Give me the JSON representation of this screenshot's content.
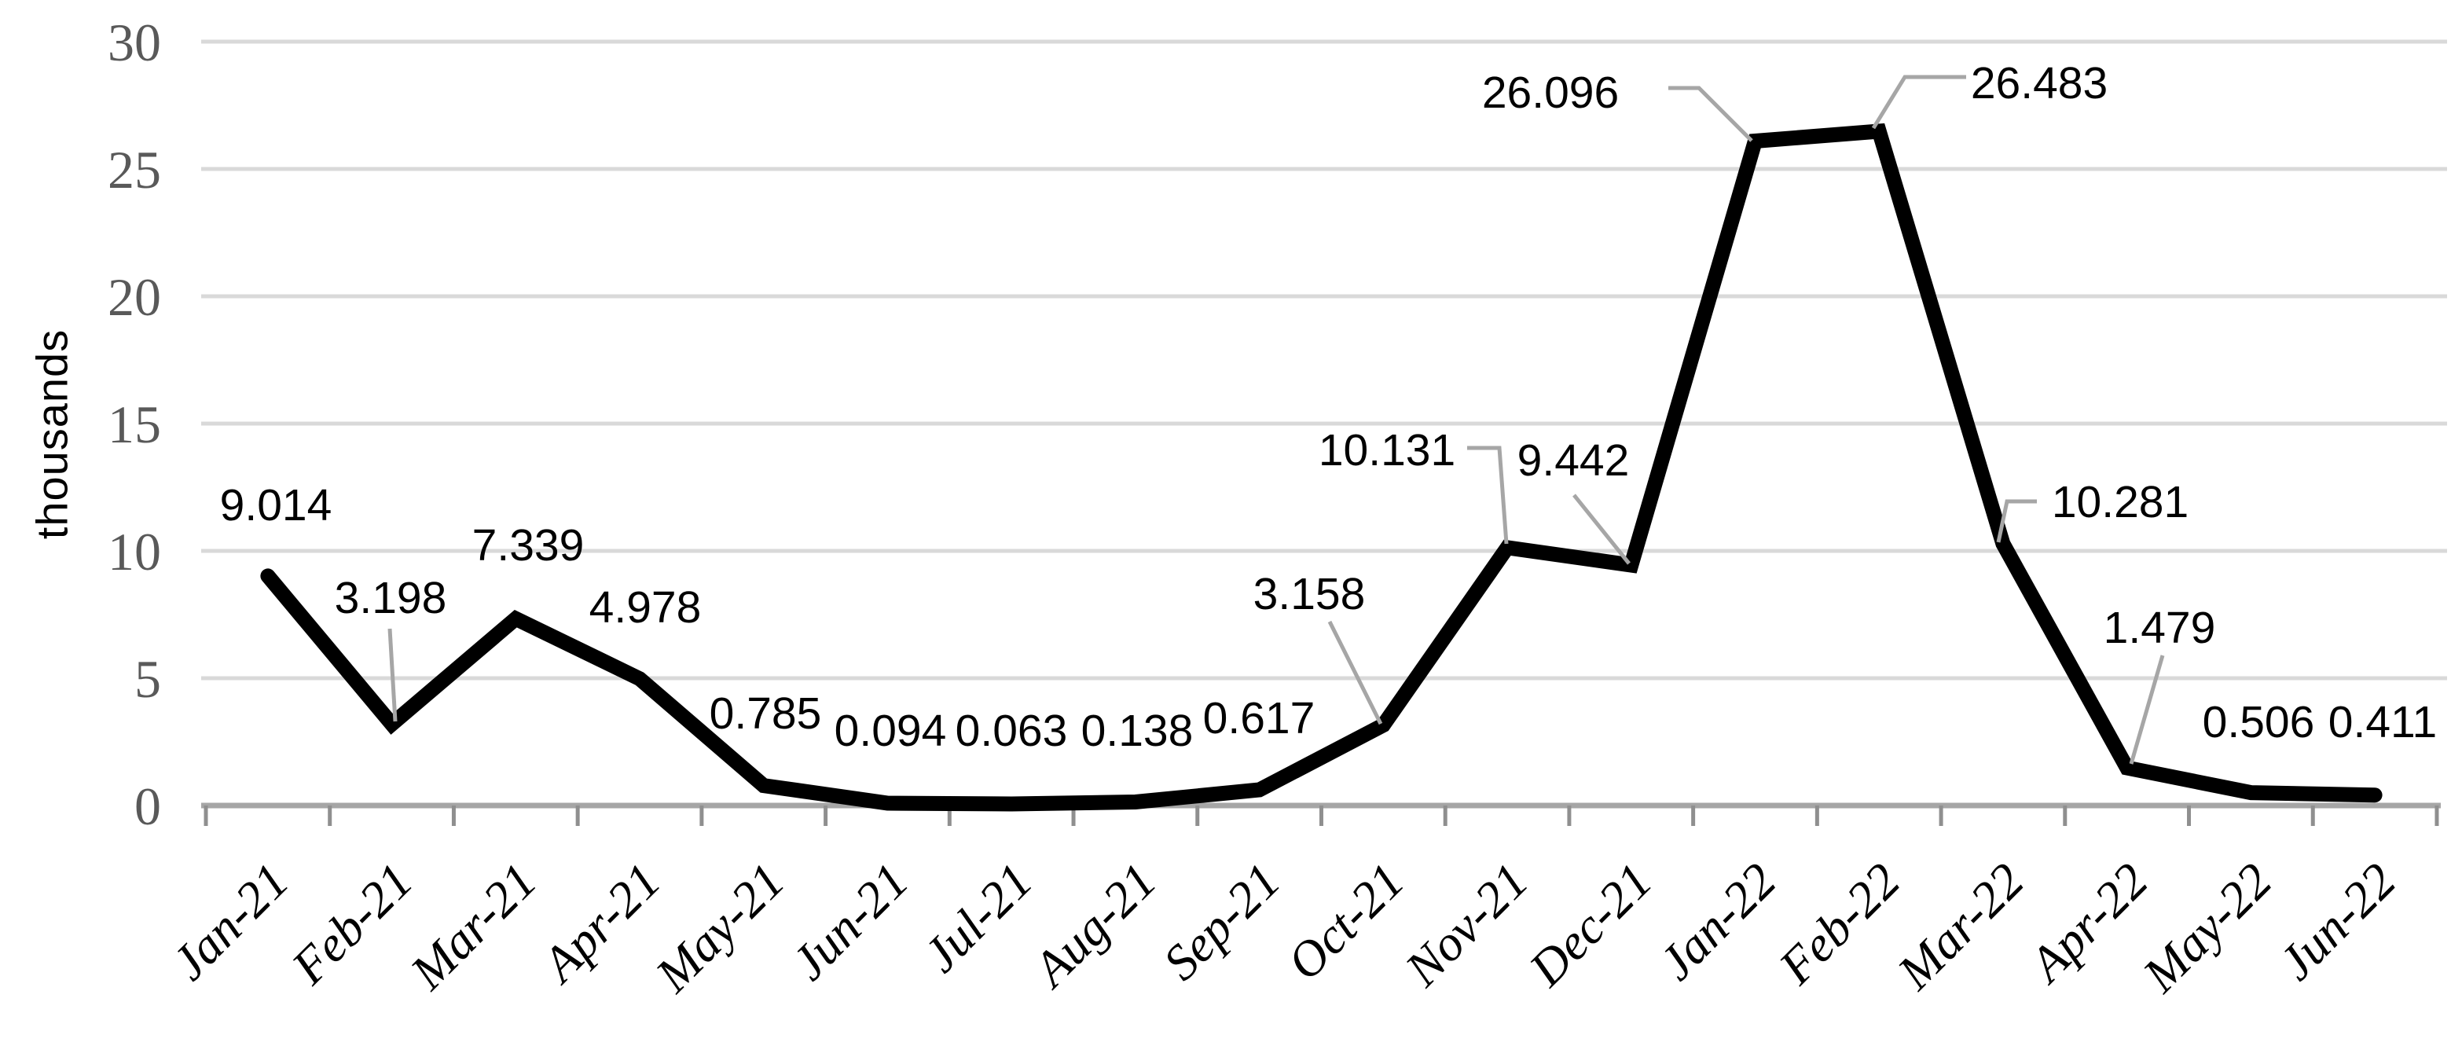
{
  "page": {
    "background_color": "#ffffff"
  },
  "chart_data": {
    "type": "line",
    "title": "",
    "xlabel": "",
    "ylabel": "thousands",
    "categories": [
      "Jan-21",
      "Feb-21",
      "Mar-21",
      "Apr-21",
      "May-21",
      "Jun-21",
      "Jul-21",
      "Aug-21",
      "Sep-21",
      "Oct-21",
      "Nov-21",
      "Dec-21",
      "Jan-22",
      "Feb-22",
      "Mar-22",
      "Apr-22",
      "May-22",
      "Jun-22"
    ],
    "values": [
      9.014,
      3.198,
      7.339,
      4.978,
      0.785,
      0.094,
      0.063,
      0.138,
      0.617,
      3.158,
      10.131,
      9.442,
      26.096,
      26.483,
      10.281,
      1.479,
      0.506,
      0.411
    ],
    "point_labels": [
      "9.014",
      "3.198",
      "7.339",
      "4.978",
      "0.785",
      "0.094",
      "0.063",
      "0.138",
      "0.617",
      "3.158",
      "10.131",
      "9.442",
      "26.096",
      "26.483",
      "10.281",
      "1.479",
      "0.506",
      "0.411"
    ],
    "ylim": [
      0,
      30
    ],
    "y_ticks": [
      0,
      5,
      10,
      15,
      20,
      25,
      30
    ],
    "grid": "horizontal",
    "legend_position": "none",
    "series_name": "",
    "colors": {
      "series_line": "#000000",
      "gridline": "#d9d9d9",
      "axis_line": "#a6a6a6",
      "tick_mark": "#8f8f8f",
      "leader_line": "#a6a6a6",
      "y_tick_label": "#595959",
      "x_tick_label": "#000000",
      "data_label": "#000000",
      "y_axis_title": "#000000"
    }
  }
}
